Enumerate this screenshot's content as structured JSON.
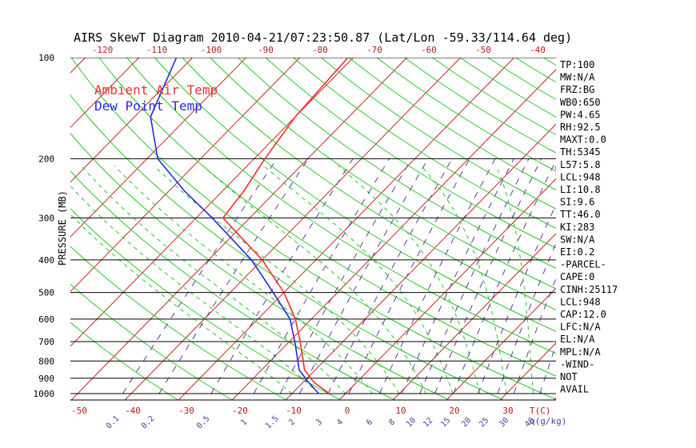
{
  "chart_data": {
    "type": "line",
    "title": "AIRS SkewT Diagram 2010-04-21/07:23:50.87 (Lat/Lon -59.33/114.64 deg)",
    "ylabel": "PRESSURE (MB)",
    "legend": {
      "placement": "top-left",
      "entries": [
        {
          "name": "Ambient Air Temp",
          "color": "#ff2a2a"
        },
        {
          "name": "Dew Point Temp",
          "color": "#2828e8"
        }
      ]
    },
    "pressure_ticks": [
      "100",
      "200",
      "300",
      "400",
      "500",
      "600",
      "700",
      "800",
      "900",
      "1000"
    ],
    "top_temp_ticks": [
      "-120",
      "-110",
      "-100",
      "-90",
      "-80",
      "-70",
      "-60",
      "-50",
      "-40"
    ],
    "bottom_temp_ticks": [
      "-50",
      "-40",
      "-30",
      "-20",
      "-10",
      "0",
      "10",
      "20",
      "30"
    ],
    "bottom_temp_unit": "T(C)",
    "mixing_ratio_ticks": [
      "0.1",
      "0.2",
      "0.5",
      "1",
      "1.5",
      "2",
      "3",
      "4",
      "6",
      "8",
      "10",
      "12",
      "15",
      "20",
      "25",
      "30",
      "40"
    ],
    "mixing_ratio_unit": "q(g/kg)",
    "series": [
      {
        "name": "Ambient Air Temp",
        "color": "#ff2a2a",
        "points": [
          {
            "p": 1000,
            "t": -3
          },
          {
            "p": 925,
            "t": -8
          },
          {
            "p": 850,
            "t": -12
          },
          {
            "p": 700,
            "t": -18
          },
          {
            "p": 600,
            "t": -23
          },
          {
            "p": 500,
            "t": -30
          },
          {
            "p": 400,
            "t": -40
          },
          {
            "p": 300,
            "t": -55
          },
          {
            "p": 250,
            "t": -56
          },
          {
            "p": 200,
            "t": -58
          },
          {
            "p": 150,
            "t": -60
          },
          {
            "p": 100,
            "t": -61
          }
        ]
      },
      {
        "name": "Dew Point Temp",
        "color": "#2828e8",
        "points": [
          {
            "p": 1000,
            "t": -5
          },
          {
            "p": 925,
            "t": -9
          },
          {
            "p": 850,
            "t": -13
          },
          {
            "p": 700,
            "t": -19
          },
          {
            "p": 600,
            "t": -24
          },
          {
            "p": 500,
            "t": -32
          },
          {
            "p": 400,
            "t": -42
          },
          {
            "p": 300,
            "t": -57
          },
          {
            "p": 250,
            "t": -67
          },
          {
            "p": 200,
            "t": -78
          },
          {
            "p": 150,
            "t": -87
          },
          {
            "p": 100,
            "t": -93
          }
        ]
      }
    ],
    "indices": [
      "TP:100",
      "MW:N/A",
      "FRZ:BG",
      "WB0:650",
      "PW:4.65",
      "RH:92.5",
      "MAXT:0.0",
      "TH:5345",
      "L57:5.8",
      "LCL:948",
      "LI:10.8",
      "SI:9.6",
      "TT:46.0",
      "KI:283",
      "SW:N/A",
      "EI:0.2",
      "-PARCEL-",
      "CAPE:0",
      "CINH:25117",
      "LCL:948",
      "CAP:12.0",
      "LFC:N/A",
      "EL:N/A",
      "MPL:N/A",
      "-WIND-",
      "NOT",
      "AVAIL"
    ],
    "colors": {
      "isotherm": "#d02020",
      "dry_adiabat": "#22cc22",
      "mixing_ratio": "#5a3aa0",
      "isobar": "#000000",
      "tick_label": "#c01818",
      "mixing_label": "#5a3aa0"
    }
  }
}
